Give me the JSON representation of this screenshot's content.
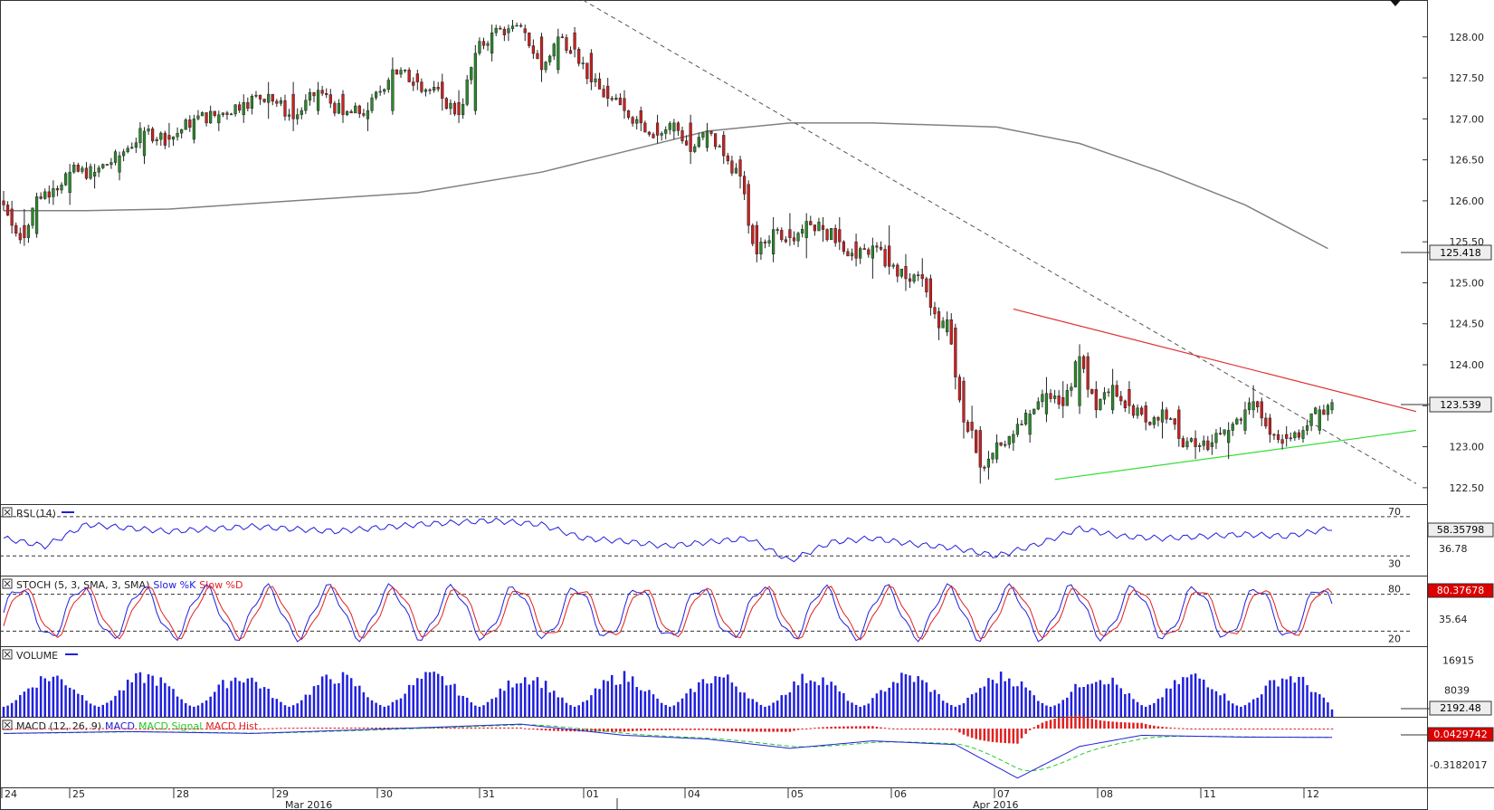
{
  "chart_data": [
    {
      "panel": "price",
      "type": "candlestick",
      "price_axis": {
        "ylim": [
          122.3,
          128.45
        ],
        "ticks": [
          "128.00",
          "127.50",
          "127.00",
          "126.50",
          "126.00",
          "125.50",
          "125.00",
          "124.50",
          "124.00",
          "123.50",
          "123.00",
          "122.50"
        ]
      },
      "last_price": "123.539",
      "ma_last": "125.418",
      "candles_approx": [
        {
          "i": 0,
          "o": 126.0,
          "h": 126.12,
          "l": 125.88,
          "c": 125.95
        },
        {
          "i": 2,
          "o": 125.9,
          "h": 126.0,
          "l": 125.6,
          "c": 125.7
        },
        {
          "i": 5,
          "o": 125.7,
          "h": 125.9,
          "l": 125.45,
          "c": 125.55
        },
        {
          "i": 8,
          "o": 125.6,
          "h": 126.1,
          "l": 125.55,
          "c": 126.05
        },
        {
          "i": 12,
          "o": 126.05,
          "h": 126.25,
          "l": 125.95,
          "c": 126.15
        },
        {
          "i": 16,
          "o": 126.1,
          "h": 126.45,
          "l": 125.95,
          "c": 126.35
        },
        {
          "i": 22,
          "o": 126.3,
          "h": 126.45,
          "l": 126.15,
          "c": 126.35
        },
        {
          "i": 28,
          "o": 126.35,
          "h": 126.6,
          "l": 126.25,
          "c": 126.55
        },
        {
          "i": 34,
          "o": 126.55,
          "h": 126.9,
          "l": 126.45,
          "c": 126.85
        },
        {
          "i": 40,
          "o": 126.8,
          "h": 126.95,
          "l": 126.65,
          "c": 126.75
        },
        {
          "i": 46,
          "o": 126.75,
          "h": 127.05,
          "l": 126.7,
          "c": 127.0
        },
        {
          "i": 52,
          "o": 126.95,
          "h": 127.1,
          "l": 126.85,
          "c": 127.05
        },
        {
          "i": 58,
          "o": 127.05,
          "h": 127.3,
          "l": 126.95,
          "c": 127.2
        },
        {
          "i": 64,
          "o": 127.2,
          "h": 127.45,
          "l": 127.0,
          "c": 127.3
        },
        {
          "i": 70,
          "o": 127.3,
          "h": 127.45,
          "l": 126.85,
          "c": 127.0
        },
        {
          "i": 76,
          "o": 127.1,
          "h": 127.45,
          "l": 127.05,
          "c": 127.35
        },
        {
          "i": 82,
          "o": 127.3,
          "h": 127.35,
          "l": 126.95,
          "c": 127.05
        },
        {
          "i": 88,
          "o": 127.0,
          "h": 127.2,
          "l": 126.85,
          "c": 127.1
        },
        {
          "i": 94,
          "o": 127.1,
          "h": 127.75,
          "l": 127.05,
          "c": 127.6
        },
        {
          "i": 100,
          "o": 127.55,
          "h": 127.6,
          "l": 127.35,
          "c": 127.45
        },
        {
          "i": 106,
          "o": 127.45,
          "h": 127.55,
          "l": 127.1,
          "c": 127.25
        },
        {
          "i": 110,
          "o": 127.2,
          "h": 127.35,
          "l": 126.95,
          "c": 127.05
        },
        {
          "i": 114,
          "o": 127.1,
          "h": 127.9,
          "l": 127.05,
          "c": 127.8
        },
        {
          "i": 118,
          "o": 127.8,
          "h": 128.15,
          "l": 127.7,
          "c": 128.05
        },
        {
          "i": 122,
          "o": 128.05,
          "h": 128.15,
          "l": 127.95,
          "c": 128.1
        },
        {
          "i": 126,
          "o": 128.1,
          "h": 128.15,
          "l": 127.95,
          "c": 128.05
        },
        {
          "i": 130,
          "o": 128.0,
          "h": 128.05,
          "l": 127.45,
          "c": 127.6
        },
        {
          "i": 134,
          "o": 127.6,
          "h": 128.1,
          "l": 127.55,
          "c": 128.0
        },
        {
          "i": 138,
          "o": 128.05,
          "h": 128.12,
          "l": 127.75,
          "c": 127.85
        },
        {
          "i": 142,
          "o": 127.8,
          "h": 127.85,
          "l": 127.35,
          "c": 127.45
        },
        {
          "i": 146,
          "o": 127.4,
          "h": 127.5,
          "l": 127.15,
          "c": 127.25
        },
        {
          "i": 150,
          "o": 127.25,
          "h": 127.35,
          "l": 127.0,
          "c": 127.1
        },
        {
          "i": 154,
          "o": 127.1,
          "h": 127.15,
          "l": 126.85,
          "c": 126.95
        },
        {
          "i": 158,
          "o": 126.95,
          "h": 127.05,
          "l": 126.7,
          "c": 126.8
        },
        {
          "i": 162,
          "o": 126.85,
          "h": 127.0,
          "l": 126.75,
          "c": 126.95
        },
        {
          "i": 166,
          "o": 126.95,
          "h": 127.05,
          "l": 126.45,
          "c": 126.6
        },
        {
          "i": 170,
          "o": 126.65,
          "h": 126.95,
          "l": 126.6,
          "c": 126.85
        },
        {
          "i": 174,
          "o": 126.8,
          "h": 126.85,
          "l": 126.45,
          "c": 126.55
        },
        {
          "i": 178,
          "o": 126.5,
          "h": 126.55,
          "l": 126.15,
          "c": 126.3
        },
        {
          "i": 180,
          "o": 126.2,
          "h": 126.25,
          "l": 125.6,
          "c": 125.7
        },
        {
          "i": 182,
          "o": 125.7,
          "h": 125.75,
          "l": 125.25,
          "c": 125.35
        },
        {
          "i": 186,
          "o": 125.35,
          "h": 125.8,
          "l": 125.25,
          "c": 125.65
        },
        {
          "i": 190,
          "o": 125.65,
          "h": 125.85,
          "l": 125.45,
          "c": 125.55
        },
        {
          "i": 194,
          "o": 125.55,
          "h": 125.85,
          "l": 125.3,
          "c": 125.75
        },
        {
          "i": 198,
          "o": 125.7,
          "h": 125.8,
          "l": 125.5,
          "c": 125.65
        },
        {
          "i": 202,
          "o": 125.65,
          "h": 125.8,
          "l": 125.4,
          "c": 125.5
        },
        {
          "i": 206,
          "o": 125.5,
          "h": 125.6,
          "l": 125.2,
          "c": 125.3
        },
        {
          "i": 210,
          "o": 125.3,
          "h": 125.55,
          "l": 125.05,
          "c": 125.45
        },
        {
          "i": 214,
          "o": 125.45,
          "h": 125.7,
          "l": 125.1,
          "c": 125.2
        },
        {
          "i": 218,
          "o": 125.2,
          "h": 125.35,
          "l": 124.9,
          "c": 125.05
        },
        {
          "i": 222,
          "o": 125.1,
          "h": 125.3,
          "l": 124.95,
          "c": 125.05
        },
        {
          "i": 224,
          "o": 125.05,
          "h": 125.1,
          "l": 124.6,
          "c": 124.7
        },
        {
          "i": 226,
          "o": 124.65,
          "h": 124.7,
          "l": 124.3,
          "c": 124.45
        },
        {
          "i": 228,
          "o": 124.4,
          "h": 124.65,
          "l": 124.35,
          "c": 124.55
        },
        {
          "i": 230,
          "o": 124.45,
          "h": 124.5,
          "l": 123.7,
          "c": 123.85
        },
        {
          "i": 232,
          "o": 123.8,
          "h": 123.85,
          "l": 123.1,
          "c": 123.3
        },
        {
          "i": 234,
          "o": 123.3,
          "h": 123.5,
          "l": 123.1,
          "c": 123.2
        },
        {
          "i": 236,
          "o": 123.2,
          "h": 123.25,
          "l": 122.55,
          "c": 122.75
        },
        {
          "i": 238,
          "o": 122.75,
          "h": 122.95,
          "l": 122.6,
          "c": 122.85
        },
        {
          "i": 240,
          "o": 122.85,
          "h": 123.15,
          "l": 122.8,
          "c": 123.05
        },
        {
          "i": 244,
          "o": 123.05,
          "h": 123.2,
          "l": 122.95,
          "c": 123.15
        },
        {
          "i": 248,
          "o": 123.15,
          "h": 123.45,
          "l": 123.05,
          "c": 123.4
        },
        {
          "i": 252,
          "o": 123.4,
          "h": 123.85,
          "l": 123.3,
          "c": 123.65
        },
        {
          "i": 256,
          "o": 123.6,
          "h": 123.8,
          "l": 123.35,
          "c": 123.5
        },
        {
          "i": 260,
          "o": 123.5,
          "h": 124.25,
          "l": 123.4,
          "c": 124.1
        },
        {
          "i": 262,
          "o": 124.1,
          "h": 124.15,
          "l": 123.6,
          "c": 123.7
        },
        {
          "i": 264,
          "o": 123.7,
          "h": 123.8,
          "l": 123.35,
          "c": 123.45
        },
        {
          "i": 268,
          "o": 123.45,
          "h": 123.95,
          "l": 123.4,
          "c": 123.75
        },
        {
          "i": 272,
          "o": 123.7,
          "h": 123.8,
          "l": 123.4,
          "c": 123.5
        },
        {
          "i": 276,
          "o": 123.5,
          "h": 123.55,
          "l": 123.2,
          "c": 123.3
        },
        {
          "i": 280,
          "o": 123.3,
          "h": 123.55,
          "l": 123.1,
          "c": 123.45
        },
        {
          "i": 284,
          "o": 123.45,
          "h": 123.5,
          "l": 123.0,
          "c": 123.1
        },
        {
          "i": 288,
          "o": 123.1,
          "h": 123.2,
          "l": 122.85,
          "c": 123.0
        },
        {
          "i": 292,
          "o": 123.0,
          "h": 123.15,
          "l": 122.9,
          "c": 123.05
        },
        {
          "i": 296,
          "o": 123.05,
          "h": 123.3,
          "l": 122.85,
          "c": 123.2
        },
        {
          "i": 300,
          "o": 123.2,
          "h": 123.55,
          "l": 123.15,
          "c": 123.45
        },
        {
          "i": 302,
          "o": 123.45,
          "h": 123.75,
          "l": 123.35,
          "c": 123.55
        },
        {
          "i": 304,
          "o": 123.55,
          "h": 123.6,
          "l": 123.25,
          "c": 123.35
        },
        {
          "i": 306,
          "o": 123.35,
          "h": 123.4,
          "l": 123.05,
          "c": 123.15
        },
        {
          "i": 310,
          "o": 123.15,
          "h": 123.25,
          "l": 123.0,
          "c": 123.1
        },
        {
          "i": 314,
          "o": 123.1,
          "h": 123.25,
          "l": 123.05,
          "c": 123.2
        },
        {
          "i": 318,
          "o": 123.2,
          "h": 123.5,
          "l": 123.15,
          "c": 123.45
        },
        {
          "i": 321,
          "o": 123.45,
          "h": 123.58,
          "l": 123.4,
          "c": 123.539
        }
      ],
      "trendlines": [
        "resistance-red",
        "support-green",
        "dashed-downtrend"
      ]
    },
    {
      "panel": "rsi",
      "type": "line",
      "title": "RSI (14)",
      "levels": [
        "70",
        "30"
      ],
      "tick": "36.78",
      "last": "58.35798",
      "ylim": [
        10,
        80
      ]
    },
    {
      "panel": "stoch",
      "type": "line",
      "title_prefix": "STOCH (5, 3, SMA, 3, SMA)",
      "series_labels": [
        "Slow %K",
        "Slow %D"
      ],
      "levels": [
        "80",
        "20"
      ],
      "tick": "35.64",
      "last": "80.37678",
      "ylim": [
        0,
        100
      ]
    },
    {
      "panel": "volume",
      "type": "bar",
      "title": "VOLUME",
      "ticks": [
        "16915",
        "8039"
      ],
      "last": "2192.48",
      "ylim": [
        0,
        20000
      ]
    },
    {
      "panel": "macd",
      "type": "line",
      "title_prefix": "MACD (12, 26, 9)",
      "series_labels": [
        "MACD",
        "MACD Signal",
        "MACD Hist"
      ],
      "tick": "-0.3182017",
      "last": "0.0429742",
      "ylim": [
        -1.3,
        0.5
      ]
    }
  ],
  "x_axis": {
    "day_labels": [
      "24",
      "25",
      "28",
      "29",
      "30",
      "31",
      "01",
      "04",
      "05",
      "06",
      "07",
      "08",
      "11",
      "12"
    ],
    "month_labels": [
      "Mar 2016",
      "Apr 2016"
    ]
  },
  "colors": {
    "bull": "#2a8a2a",
    "bear": "#cc2020",
    "ma": "#808080",
    "resistance": "#e03030",
    "support": "#33dd33",
    "rsi": "#2020dd",
    "stoch_k": "#2020dd",
    "stoch_d": "#e02020",
    "volume": "#2020dd",
    "macd": "#2020dd",
    "macd_signal": "#22cc22",
    "macd_hist": "#e02020"
  }
}
